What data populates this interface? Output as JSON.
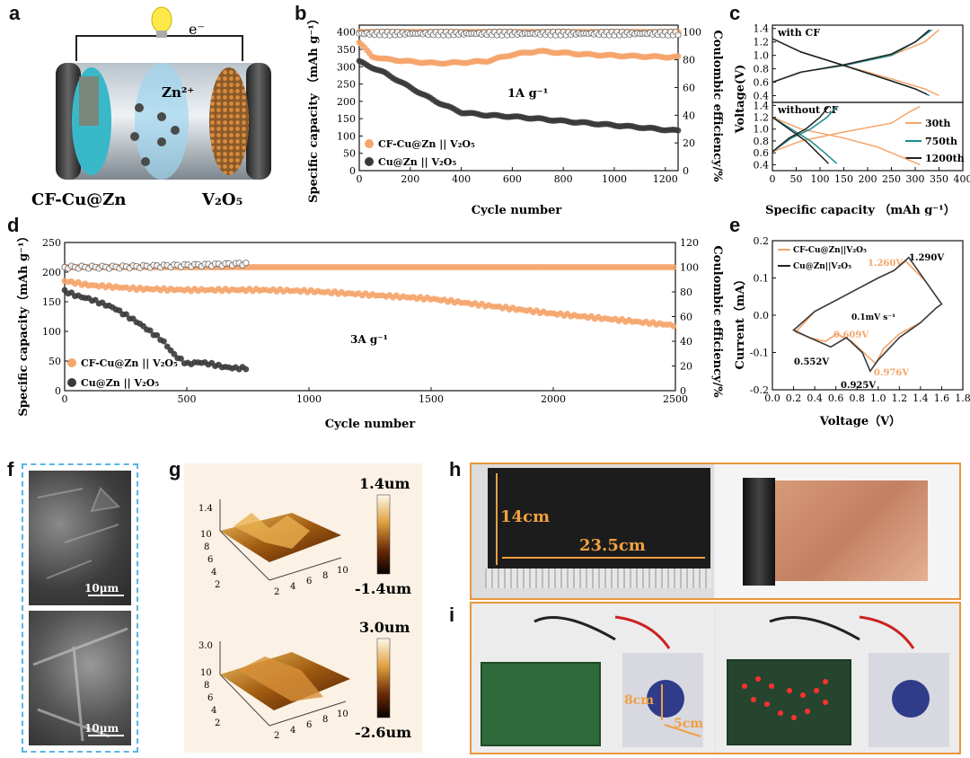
{
  "labels": {
    "a": "a",
    "b": "b",
    "c": "c",
    "d": "d",
    "e": "e",
    "f": "f",
    "g": "g",
    "h": "h",
    "i": "i"
  },
  "panel_a": {
    "electron": "e⁻",
    "ion": "Zn²⁺",
    "anode": "CF-Cu@Zn",
    "cathode": "V₂O₅"
  },
  "colors": {
    "orange": "#f5a46a",
    "dark": "#3a3a3a",
    "teal": "#1f8a8a",
    "black": "#222222",
    "blue_dash": "#5ab4e8",
    "photo_border": "#e8963c"
  },
  "chart_data": [
    {
      "type": "scatter",
      "panel": "b",
      "xlabel": "Cycle number",
      "ylabel": "Specific capacity （mAh g⁻¹）",
      "y2label": "Coulombic efficiency/%",
      "xlim": [
        0,
        1250
      ],
      "ylim": [
        0,
        420
      ],
      "y2lim": [
        0,
        105
      ],
      "xticks": [
        0,
        200,
        400,
        600,
        800,
        1000,
        1200
      ],
      "yticks": [
        0,
        50,
        100,
        150,
        200,
        250,
        300,
        350,
        400
      ],
      "y2ticks": [
        0,
        20,
        40,
        60,
        80,
        100
      ],
      "annotation": "1A g⁻¹",
      "series": [
        {
          "name": "CF-Cu@Zn || V₂O₅",
          "color": "#f5a46a",
          "x": [
            0,
            50,
            100,
            200,
            300,
            400,
            500,
            600,
            700,
            800,
            900,
            1000,
            1100,
            1200,
            1250
          ],
          "y": [
            370,
            330,
            322,
            315,
            310,
            312,
            316,
            335,
            345,
            340,
            335,
            332,
            330,
            328,
            328
          ]
        },
        {
          "name": "Cu@Zn || V₂O₅",
          "color": "#3a3a3a",
          "x": [
            0,
            50,
            100,
            200,
            300,
            400,
            500,
            600,
            700,
            800,
            900,
            1000,
            1100,
            1200,
            1250
          ],
          "y": [
            315,
            298,
            282,
            240,
            200,
            168,
            160,
            156,
            150,
            143,
            137,
            131,
            125,
            118,
            115
          ]
        }
      ],
      "ce_series": [
        {
          "name": "CF-Cu@Zn CE",
          "color": "#f5a46a",
          "x": [
            0,
            200,
            400,
            600,
            800,
            1000,
            1250
          ],
          "y": [
            100,
            100,
            100,
            100,
            100,
            100,
            100
          ]
        },
        {
          "name": "Cu@Zn CE",
          "color": "#3a3a3a",
          "x": [
            0,
            200,
            400,
            600,
            800,
            1000,
            1250
          ],
          "y": [
            99,
            99,
            99,
            99,
            99,
            99,
            99
          ]
        }
      ]
    },
    {
      "type": "line",
      "panel": "c",
      "xlabel": "Specific capacity （mAh g⁻¹）",
      "ylabel": "Voltage(V)",
      "xlim": [
        0,
        400
      ],
      "ylim": [
        0.3,
        1.45
      ],
      "xticks": [
        0,
        50,
        100,
        150,
        200,
        250,
        300,
        350,
        400
      ],
      "yticks": [
        0.4,
        0.6,
        0.8,
        1.0,
        1.2,
        1.4
      ],
      "subplots": [
        {
          "title": "with CF",
          "series": [
            {
              "name": "30th",
              "color": "#f5a46a",
              "charge": [
                [
                  0,
                  0.6
                ],
                [
                  60,
                  0.75
                ],
                [
                  150,
                  0.85
                ],
                [
                  250,
                  1.0
                ],
                [
                  320,
                  1.2
                ],
                [
                  350,
                  1.38
                ]
              ],
              "discharge": [
                [
                  0,
                  1.25
                ],
                [
                  60,
                  1.05
                ],
                [
                  150,
                  0.85
                ],
                [
                  250,
                  0.65
                ],
                [
                  320,
                  0.5
                ],
                [
                  350,
                  0.4
                ]
              ]
            },
            {
              "name": "750th",
              "color": "#1f8a8a",
              "charge": [
                [
                  0,
                  0.6
                ],
                [
                  60,
                  0.75
                ],
                [
                  150,
                  0.85
                ],
                [
                  250,
                  1.0
                ],
                [
                  300,
                  1.2
                ],
                [
                  335,
                  1.38
                ]
              ],
              "discharge": [
                [
                  0,
                  1.25
                ],
                [
                  60,
                  1.05
                ],
                [
                  150,
                  0.85
                ],
                [
                  250,
                  0.62
                ],
                [
                  300,
                  0.5
                ],
                [
                  330,
                  0.4
                ]
              ]
            },
            {
              "name": "1200th",
              "color": "#222222",
              "charge": [
                [
                  0,
                  0.6
                ],
                [
                  60,
                  0.75
                ],
                [
                  150,
                  0.86
                ],
                [
                  250,
                  1.02
                ],
                [
                  300,
                  1.2
                ],
                [
                  330,
                  1.38
                ]
              ],
              "discharge": [
                [
                  0,
                  1.25
                ],
                [
                  60,
                  1.05
                ],
                [
                  150,
                  0.85
                ],
                [
                  250,
                  0.62
                ],
                [
                  300,
                  0.5
                ],
                [
                  325,
                  0.42
                ]
              ]
            }
          ]
        },
        {
          "title": "without CF",
          "series": [
            {
              "name": "30th",
              "color": "#f5a46a",
              "charge": [
                [
                  0,
                  0.62
                ],
                [
                  60,
                  0.8
                ],
                [
                  150,
                  0.95
                ],
                [
                  250,
                  1.1
                ],
                [
                  290,
                  1.3
                ],
                [
                  310,
                  1.38
                ]
              ],
              "discharge": [
                [
                  0,
                  1.2
                ],
                [
                  60,
                  1.0
                ],
                [
                  150,
                  0.85
                ],
                [
                  220,
                  0.7
                ],
                [
                  280,
                  0.5
                ],
                [
                  310,
                  0.4
                ]
              ]
            },
            {
              "name": "750th",
              "color": "#1f8a8a",
              "charge": [
                [
                  0,
                  0.62
                ],
                [
                  40,
                  0.85
                ],
                [
                  80,
                  1.0
                ],
                [
                  115,
                  1.2
                ],
                [
                  135,
                  1.38
                ]
              ],
              "discharge": [
                [
                  0,
                  1.2
                ],
                [
                  40,
                  1.0
                ],
                [
                  80,
                  0.8
                ],
                [
                  110,
                  0.6
                ],
                [
                  135,
                  0.42
                ]
              ]
            },
            {
              "name": "1200th",
              "color": "#222222",
              "charge": [
                [
                  0,
                  0.62
                ],
                [
                  35,
                  0.85
                ],
                [
                  70,
                  1.0
                ],
                [
                  100,
                  1.2
                ],
                [
                  118,
                  1.38
                ]
              ],
              "discharge": [
                [
                  0,
                  1.2
                ],
                [
                  35,
                  1.0
                ],
                [
                  70,
                  0.8
                ],
                [
                  95,
                  0.6
                ],
                [
                  118,
                  0.42
                ]
              ]
            }
          ]
        }
      ]
    },
    {
      "type": "scatter",
      "panel": "d",
      "xlabel": "Cycle number",
      "ylabel": "Specific capacity（mAh g⁻¹）",
      "y2label": "Coulombic efficiency/%",
      "xlim": [
        0,
        2500
      ],
      "ylim": [
        0,
        250
      ],
      "y2lim": [
        0,
        120
      ],
      "xticks": [
        0,
        500,
        1000,
        1500,
        2000,
        2500
      ],
      "yticks": [
        0,
        50,
        100,
        150,
        200,
        250
      ],
      "y2ticks": [
        0,
        20,
        40,
        60,
        80,
        100,
        120
      ],
      "annotation": "3A g⁻¹",
      "series": [
        {
          "name": "CF-Cu@Zn || V₂O₅",
          "color": "#f5a46a",
          "x": [
            0,
            100,
            300,
            500,
            800,
            1000,
            1200,
            1500,
            1800,
            2000,
            2200,
            2500
          ],
          "y": [
            185,
            178,
            172,
            170,
            170,
            168,
            163,
            155,
            140,
            130,
            122,
            110
          ]
        },
        {
          "name": "Cu@Zn || V₂O₅",
          "color": "#3a3a3a",
          "x": [
            0,
            50,
            100,
            200,
            300,
            400,
            450,
            500,
            550,
            600,
            650,
            700,
            750
          ],
          "y": [
            168,
            160,
            155,
            140,
            115,
            85,
            60,
            45,
            48,
            45,
            40,
            38,
            38
          ]
        }
      ],
      "ce_series": [
        {
          "name": "CF-Cu@Zn CE",
          "color": "#f5a46a",
          "x": [
            0,
            500,
            1000,
            1500,
            2000,
            2500
          ],
          "y": [
            100,
            100,
            100,
            100,
            100,
            100
          ]
        },
        {
          "name": "Cu@Zn CE",
          "color": "#3a3a3a",
          "x": [
            0,
            200,
            400,
            600,
            750
          ],
          "y": [
            100,
            100,
            101,
            102,
            103
          ]
        }
      ]
    },
    {
      "type": "line",
      "panel": "e",
      "xlabel": "Voltage（V）",
      "ylabel": "Current（mA）",
      "xlim": [
        0,
        1.8
      ],
      "ylim": [
        -0.2,
        0.2
      ],
      "xticks": [
        0.0,
        0.2,
        0.4,
        0.6,
        0.8,
        1.0,
        1.2,
        1.4,
        1.6,
        1.8
      ],
      "yticks": [
        -0.2,
        -0.1,
        0.0,
        0.1,
        0.2
      ],
      "annotation": "0.1mV s⁻¹",
      "peak_labels": {
        "orange_upper": "1.260V",
        "dark_upper": "1.290V",
        "orange_lower1": "0.609V",
        "orange_lower2": "0.976V",
        "dark_lower1": "0.552V",
        "dark_lower2": "0.925V"
      },
      "series": [
        {
          "name": "CF-Cu@Zn||V₂O₅",
          "color": "#f5a46a",
          "x": [
            0.22,
            0.35,
            0.5,
            0.61,
            0.75,
            0.9,
            0.976,
            1.05,
            1.2,
            1.4,
            1.55,
            1.6,
            1.45,
            1.26,
            1.15,
            1.0,
            0.8,
            0.6,
            0.4,
            0.22
          ],
          "y": [
            -0.045,
            -0.06,
            -0.07,
            -0.05,
            -0.07,
            -0.11,
            -0.13,
            -0.09,
            -0.05,
            -0.02,
            0.02,
            0.03,
            0.09,
            0.145,
            0.12,
            0.1,
            0.07,
            0.04,
            0.01,
            -0.045
          ]
        },
        {
          "name": "Cu@Zn||V₂O₅",
          "color": "#3a3a3a",
          "x": [
            0.2,
            0.35,
            0.552,
            0.7,
            0.85,
            0.925,
            1.0,
            1.2,
            1.4,
            1.55,
            1.6,
            1.45,
            1.29,
            1.15,
            1.0,
            0.8,
            0.6,
            0.4,
            0.2
          ],
          "y": [
            -0.04,
            -0.06,
            -0.085,
            -0.06,
            -0.1,
            -0.15,
            -0.12,
            -0.06,
            -0.02,
            0.02,
            0.03,
            0.09,
            0.155,
            0.12,
            0.1,
            0.07,
            0.04,
            0.01,
            -0.04
          ]
        }
      ]
    }
  ],
  "panel_f": {
    "scale1": "10μm",
    "scale2": "10μm"
  },
  "panel_g": {
    "top": {
      "zmax": "1.4",
      "cb_max": "1.4um",
      "cb_min": "-1.4um",
      "axis_ticks": [
        "2",
        "4",
        "6",
        "8",
        "10"
      ]
    },
    "bottom": {
      "zmax": "3.0",
      "cb_max": "3.0um",
      "cb_min": "-2.6um",
      "axis_ticks": [
        "2",
        "4",
        "6",
        "8",
        "10"
      ]
    }
  },
  "panel_h": {
    "height_label": "14cm",
    "width_label": "23.5cm"
  },
  "panel_i": {
    "height_label": "8cm",
    "width_label": "5cm"
  }
}
